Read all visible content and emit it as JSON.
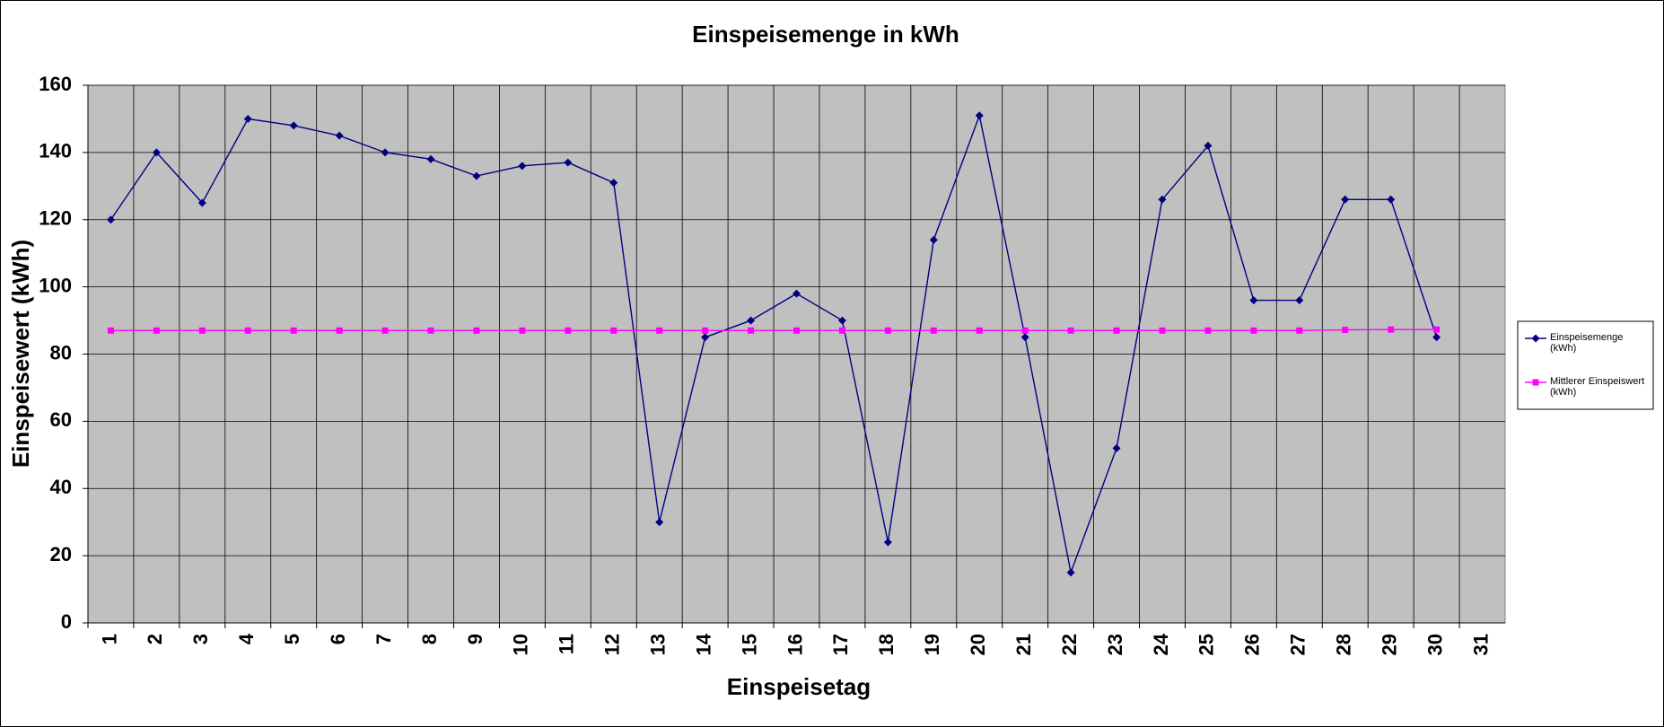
{
  "chart_data": {
    "type": "line",
    "title": "Einspeisemenge in kWh",
    "x_label": "Einspeisetag",
    "y_label": "Einspeisewert  (kWh)",
    "categories": [
      "1",
      "2",
      "3",
      "4",
      "5",
      "6",
      "7",
      "8",
      "9",
      "10",
      "11",
      "12",
      "13",
      "14",
      "15",
      "16",
      "17",
      "18",
      "19",
      "20",
      "21",
      "22",
      "23",
      "24",
      "25",
      "26",
      "27",
      "28",
      "29",
      "30",
      "31"
    ],
    "series": [
      {
        "name": "Einspeisemenge (kWh)",
        "color": "#000080",
        "marker": "diamond",
        "values": [
          120,
          140,
          125,
          150,
          148,
          145,
          140,
          138,
          133,
          136,
          137,
          131,
          30,
          85,
          90,
          98,
          90,
          24,
          114,
          151,
          85,
          15,
          52,
          126,
          142,
          96,
          96,
          126,
          126,
          85,
          null
        ]
      },
      {
        "name": "Mittlerer Einspeiswert (kWh)",
        "color": "#ff00ff",
        "marker": "square",
        "values": [
          87,
          87,
          87,
          87,
          87,
          87,
          87,
          87,
          87,
          87,
          87,
          87,
          87,
          87,
          87,
          87,
          87,
          87,
          87,
          87,
          87,
          87,
          87,
          87,
          87,
          87,
          87,
          87.2,
          87.3,
          87.3,
          null
        ]
      }
    ],
    "ylim": [
      0,
      160
    ],
    "yticks": [
      0,
      20,
      40,
      60,
      80,
      100,
      120,
      140,
      160
    ],
    "grid": true,
    "legend": "right",
    "background": "#c0c0c0"
  }
}
